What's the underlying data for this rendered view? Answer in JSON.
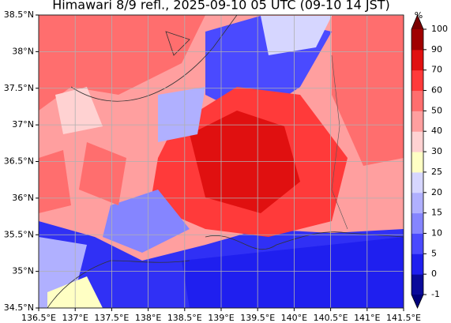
{
  "map": {
    "title": "Himawari 8/9 refl., 2025-09-10 05 UTC (09-10 14 JST)",
    "xlim": [
      136.5,
      141.5
    ],
    "ylim": [
      34.5,
      38.5
    ],
    "xticks": [
      {
        "value": 136.5,
        "label": "136.5°E"
      },
      {
        "value": 137,
        "label": "137°E"
      },
      {
        "value": 137.5,
        "label": "137.5°E"
      },
      {
        "value": 138,
        "label": "138°E"
      },
      {
        "value": 138.5,
        "label": "138.5°E"
      },
      {
        "value": 139,
        "label": "139°E"
      },
      {
        "value": 139.5,
        "label": "139.5°E"
      },
      {
        "value": 140,
        "label": "140°E"
      },
      {
        "value": 140.5,
        "label": "140.5°E"
      },
      {
        "value": 141,
        "label": "141°E"
      },
      {
        "value": 141.5,
        "label": "141.5°E"
      }
    ],
    "yticks": [
      {
        "value": 34.5,
        "label": "34.5°N"
      },
      {
        "value": 35,
        "label": "35°N"
      },
      {
        "value": 35.5,
        "label": "35.5°N"
      },
      {
        "value": 36,
        "label": "36°N"
      },
      {
        "value": 36.5,
        "label": "36.5°N"
      },
      {
        "value": 37,
        "label": "37°N"
      },
      {
        "value": 37.5,
        "label": "37.5°N"
      },
      {
        "value": 38,
        "label": "38°N"
      },
      {
        "value": 38.5,
        "label": "38.5°N"
      }
    ],
    "grid": true,
    "colorbar": {
      "unit": "%",
      "levels": [
        -1,
        0,
        5,
        10,
        15,
        20,
        25,
        30,
        40,
        50,
        60,
        70,
        90,
        100
      ],
      "colors": [
        "#0a0a9a",
        "#1f1fef",
        "#4a4aff",
        "#8585ff",
        "#b0b0ff",
        "#d6d6ff",
        "#ffffc4",
        "#ffd2d2",
        "#ff9f9f",
        "#ff6e6e",
        "#ff3a3a",
        "#e01010",
        "#a00000"
      ],
      "under_color": "#00007a",
      "over_color": "#7a0000"
    }
  }
}
